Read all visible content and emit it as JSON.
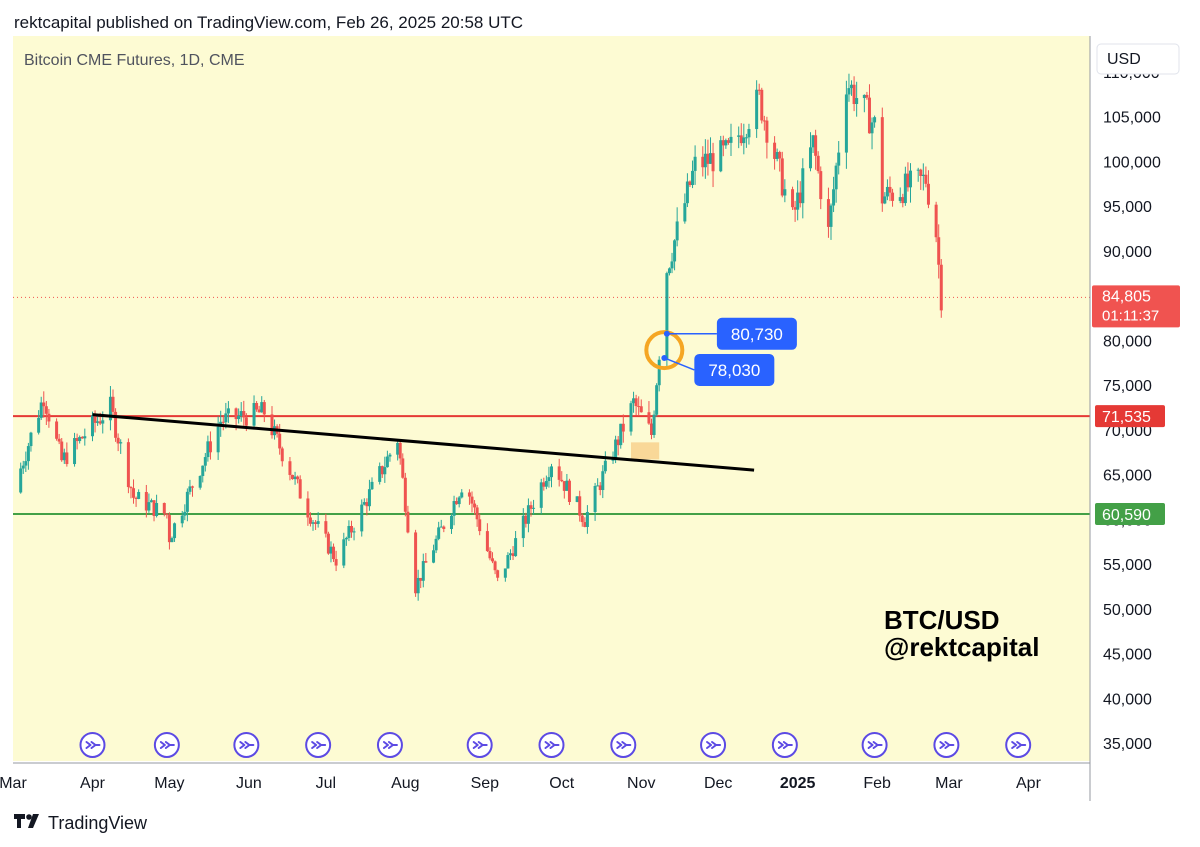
{
  "header": {
    "published_line": "rektcapital published on TradingView.com, Feb 26, 2025 20:58 UTC"
  },
  "footer": {
    "brand": "TradingView",
    "logo_icon": "tradingview-logo-icon"
  },
  "colors": {
    "plot_background": "#fdfbd3",
    "up_candle": "#26a69a",
    "down_candle": "#ef5350",
    "resistance_line": "#e53935",
    "support_line": "#43a047",
    "trend_line": "#000000",
    "annotation_box": "#2962ff",
    "circle_highlight": "#f5a623",
    "price_label": "#f05350"
  },
  "chart_data": {
    "type": "candlestick",
    "title": "Bitcoin CME Futures, 1D, CME",
    "currency": "USD",
    "watermark": [
      "BTC/USD",
      "@rektcapital"
    ],
    "ylim": [
      33000,
      114000
    ],
    "xlim": [
      "2024-03-01",
      "2025-04-25"
    ],
    "y_ticks": [
      35000,
      40000,
      45000,
      50000,
      55000,
      60000,
      65000,
      70000,
      75000,
      80000,
      85000,
      90000,
      95000,
      100000,
      105000,
      110000
    ],
    "y_tick_labels": [
      "35,000",
      "40,000",
      "45,000",
      "50,000",
      "55,000",
      "60,000",
      "65,000",
      "70,000",
      "75,000",
      "80,000",
      "85,000",
      "90,000",
      "95,000",
      "100,000",
      "105,000",
      "110,000"
    ],
    "x_ticks": [
      {
        "label": "Mar",
        "date": "2024-03-01"
      },
      {
        "label": "Apr",
        "date": "2024-04-01"
      },
      {
        "label": "May",
        "date": "2024-05-01"
      },
      {
        "label": "Jun",
        "date": "2024-06-01"
      },
      {
        "label": "Jul",
        "date": "2024-07-01"
      },
      {
        "label": "Aug",
        "date": "2024-08-01"
      },
      {
        "label": "Sep",
        "date": "2024-09-01"
      },
      {
        "label": "Oct",
        "date": "2024-10-01"
      },
      {
        "label": "Nov",
        "date": "2024-11-01"
      },
      {
        "label": "Dec",
        "date": "2024-12-01"
      },
      {
        "label": "2025",
        "date": "2025-01-01",
        "bold": true
      },
      {
        "label": "Feb",
        "date": "2025-02-01"
      },
      {
        "label": "Mar",
        "date": "2025-03-01"
      },
      {
        "label": "Apr",
        "date": "2025-04-01"
      }
    ],
    "horizontal_lines": [
      {
        "name": "resistance",
        "value": 71535,
        "label": "71,535"
      },
      {
        "name": "support",
        "value": 60590,
        "label": "60,590"
      }
    ],
    "current_price": {
      "value": 84805,
      "label": "84,805",
      "countdown": "01:11:37"
    },
    "trend_line": {
      "start": {
        "date": "2024-04-01",
        "value": 71700
      },
      "end": {
        "date": "2024-12-15",
        "value": 65500
      }
    },
    "annotations": [
      {
        "label": "80,730",
        "date": "2024-11-11",
        "value": 80730
      },
      {
        "label": "78,030",
        "date": "2024-11-10",
        "value": 78030
      }
    ],
    "highlight_circle": {
      "date": "2024-11-10",
      "value": 78900
    },
    "highlight_zone": {
      "start": "2024-10-28",
      "end": "2024-11-08",
      "low": 66700,
      "high": 68600
    },
    "event_markers": [
      "2024-04-01",
      "2024-04-30",
      "2024-05-31",
      "2024-06-28",
      "2024-07-26",
      "2024-08-30",
      "2024-09-27",
      "2024-10-25",
      "2024-11-29",
      "2024-12-27",
      "2025-01-31",
      "2025-02-28",
      "2025-03-28"
    ],
    "ohlc_monthly_path": [
      {
        "date": "2024-03-01",
        "close": 63000
      },
      {
        "date": "2024-03-13",
        "close": 73800
      },
      {
        "date": "2024-03-20",
        "close": 66500
      },
      {
        "date": "2024-04-01",
        "close": 70500
      },
      {
        "date": "2024-04-08",
        "close": 72500
      },
      {
        "date": "2024-04-17",
        "close": 62500
      },
      {
        "date": "2024-04-30",
        "close": 60500
      },
      {
        "date": "2024-05-01",
        "close": 58000
      },
      {
        "date": "2024-05-21",
        "close": 71000
      },
      {
        "date": "2024-06-07",
        "close": 72000
      },
      {
        "date": "2024-06-24",
        "close": 61000
      },
      {
        "date": "2024-07-05",
        "close": 55500
      },
      {
        "date": "2024-07-29",
        "close": 69000
      },
      {
        "date": "2024-08-05",
        "close": 52500
      },
      {
        "date": "2024-08-24",
        "close": 64500
      },
      {
        "date": "2024-09-06",
        "close": 53000
      },
      {
        "date": "2024-09-27",
        "close": 66500
      },
      {
        "date": "2024-10-10",
        "close": 60000
      },
      {
        "date": "2024-10-29",
        "close": 73000
      },
      {
        "date": "2024-11-05",
        "close": 69500
      },
      {
        "date": "2024-11-11",
        "close": 88000
      },
      {
        "date": "2024-11-22",
        "close": 99500
      },
      {
        "date": "2024-12-05",
        "close": 101000
      },
      {
        "date": "2024-12-17",
        "close": 107000
      },
      {
        "date": "2024-12-30",
        "close": 93500
      },
      {
        "date": "2025-01-07",
        "close": 102000
      },
      {
        "date": "2025-01-13",
        "close": 92000
      },
      {
        "date": "2025-01-20",
        "close": 109000
      },
      {
        "date": "2025-01-31",
        "close": 104000
      },
      {
        "date": "2025-02-03",
        "close": 96000
      },
      {
        "date": "2025-02-20",
        "close": 98000
      },
      {
        "date": "2025-02-24",
        "close": 92000
      },
      {
        "date": "2025-02-26",
        "close": 84805
      }
    ]
  }
}
